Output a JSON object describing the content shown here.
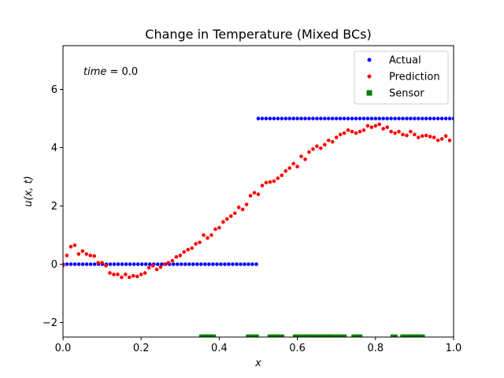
{
  "chart_data": {
    "type": "scatter",
    "title": "Change in Temperature (Mixed BCs)",
    "xlabel": "x",
    "ylabel": "u(x, t)",
    "xlim": [
      0.0,
      1.0
    ],
    "ylim": [
      -2.5,
      7.5
    ],
    "xticks": [
      0.0,
      0.2,
      0.4,
      0.6,
      0.8,
      1.0
    ],
    "xtick_labels": [
      "0.0",
      "0.2",
      "0.4",
      "0.6",
      "0.8",
      "1.0"
    ],
    "yticks": [
      -2,
      0,
      2,
      4,
      6
    ],
    "ytick_labels": [
      "−2",
      "0",
      "2",
      "4",
      "6"
    ],
    "annotation": {
      "var": "time",
      "value": "0.0"
    },
    "legend": {
      "placement": "top-right"
    },
    "grid": false,
    "series": [
      {
        "name": "Actual",
        "marker": "circle",
        "color": "#0000ff",
        "segments": [
          {
            "x_start": 0.0,
            "x_end": 0.495,
            "count": 50,
            "y": 0.0
          },
          {
            "x_start": 0.5,
            "x_end": 1.0,
            "count": 51,
            "y": 5.0
          }
        ]
      },
      {
        "name": "Prediction",
        "marker": "circle",
        "color": "#ff0000",
        "points": [
          [
            0.0,
            -0.05
          ],
          [
            0.01,
            0.3
          ],
          [
            0.02,
            0.6
          ],
          [
            0.03,
            0.65
          ],
          [
            0.04,
            0.35
          ],
          [
            0.05,
            0.45
          ],
          [
            0.06,
            0.35
          ],
          [
            0.07,
            0.3
          ],
          [
            0.08,
            0.28
          ],
          [
            0.09,
            0.05
          ],
          [
            0.1,
            0.05
          ],
          [
            0.11,
            -0.05
          ],
          [
            0.12,
            -0.3
          ],
          [
            0.13,
            -0.35
          ],
          [
            0.14,
            -0.35
          ],
          [
            0.15,
            -0.45
          ],
          [
            0.16,
            -0.35
          ],
          [
            0.17,
            -0.45
          ],
          [
            0.18,
            -0.4
          ],
          [
            0.19,
            -0.42
          ],
          [
            0.2,
            -0.35
          ],
          [
            0.21,
            -0.3
          ],
          [
            0.22,
            -0.12
          ],
          [
            0.23,
            -0.05
          ],
          [
            0.24,
            -0.18
          ],
          [
            0.25,
            -0.1
          ],
          [
            0.26,
            0.0
          ],
          [
            0.27,
            0.05
          ],
          [
            0.28,
            0.12
          ],
          [
            0.29,
            0.25
          ],
          [
            0.3,
            0.3
          ],
          [
            0.31,
            0.42
          ],
          [
            0.32,
            0.5
          ],
          [
            0.33,
            0.55
          ],
          [
            0.34,
            0.7
          ],
          [
            0.35,
            0.75
          ],
          [
            0.36,
            1.0
          ],
          [
            0.37,
            0.9
          ],
          [
            0.38,
            1.0
          ],
          [
            0.39,
            1.2
          ],
          [
            0.4,
            1.25
          ],
          [
            0.41,
            1.45
          ],
          [
            0.42,
            1.55
          ],
          [
            0.43,
            1.65
          ],
          [
            0.44,
            1.75
          ],
          [
            0.45,
            1.95
          ],
          [
            0.46,
            1.88
          ],
          [
            0.47,
            2.05
          ],
          [
            0.48,
            2.35
          ],
          [
            0.49,
            2.45
          ],
          [
            0.5,
            2.4
          ],
          [
            0.51,
            2.7
          ],
          [
            0.52,
            2.8
          ],
          [
            0.53,
            2.82
          ],
          [
            0.54,
            2.85
          ],
          [
            0.55,
            2.95
          ],
          [
            0.56,
            3.05
          ],
          [
            0.57,
            3.2
          ],
          [
            0.58,
            3.3
          ],
          [
            0.59,
            3.45
          ],
          [
            0.6,
            3.35
          ],
          [
            0.61,
            3.7
          ],
          [
            0.62,
            3.6
          ],
          [
            0.63,
            3.85
          ],
          [
            0.64,
            3.95
          ],
          [
            0.65,
            4.05
          ],
          [
            0.66,
            3.98
          ],
          [
            0.67,
            4.1
          ],
          [
            0.68,
            4.25
          ],
          [
            0.69,
            4.2
          ],
          [
            0.7,
            4.35
          ],
          [
            0.71,
            4.45
          ],
          [
            0.72,
            4.5
          ],
          [
            0.73,
            4.6
          ],
          [
            0.74,
            4.55
          ],
          [
            0.75,
            4.5
          ],
          [
            0.76,
            4.55
          ],
          [
            0.77,
            4.6
          ],
          [
            0.78,
            4.75
          ],
          [
            0.79,
            4.7
          ],
          [
            0.8,
            4.75
          ],
          [
            0.81,
            4.8
          ],
          [
            0.82,
            4.65
          ],
          [
            0.83,
            4.7
          ],
          [
            0.84,
            4.55
          ],
          [
            0.85,
            4.5
          ],
          [
            0.86,
            4.55
          ],
          [
            0.87,
            4.45
          ],
          [
            0.88,
            4.42
          ],
          [
            0.89,
            4.55
          ],
          [
            0.9,
            4.45
          ],
          [
            0.91,
            4.35
          ],
          [
            0.92,
            4.4
          ],
          [
            0.93,
            4.42
          ],
          [
            0.94,
            4.38
          ],
          [
            0.95,
            4.35
          ],
          [
            0.96,
            4.25
          ],
          [
            0.97,
            4.3
          ],
          [
            0.98,
            4.4
          ],
          [
            0.99,
            4.25
          ]
        ]
      },
      {
        "name": "Sensor",
        "marker": "square",
        "color": "#008000",
        "y": -2.5,
        "x": [
          0.355,
          0.36,
          0.365,
          0.37,
          0.375,
          0.38,
          0.385,
          0.475,
          0.48,
          0.49,
          0.495,
          0.53,
          0.535,
          0.54,
          0.545,
          0.55,
          0.555,
          0.56,
          0.595,
          0.6,
          0.61,
          0.615,
          0.62,
          0.625,
          0.63,
          0.635,
          0.64,
          0.645,
          0.655,
          0.66,
          0.665,
          0.67,
          0.675,
          0.68,
          0.685,
          0.69,
          0.695,
          0.705,
          0.71,
          0.715,
          0.72,
          0.745,
          0.75,
          0.755,
          0.76,
          0.845,
          0.85,
          0.87,
          0.875,
          0.88,
          0.885,
          0.89,
          0.895,
          0.9,
          0.905,
          0.91,
          0.915,
          0.92
        ]
      }
    ]
  }
}
